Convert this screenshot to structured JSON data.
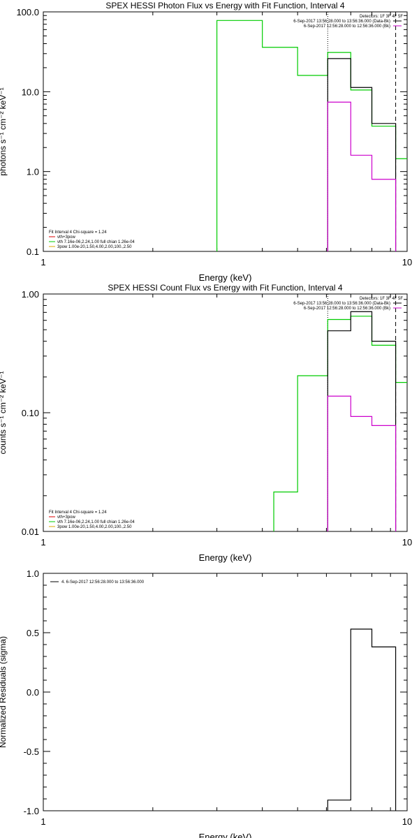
{
  "chart_data": [
    {
      "type": "line",
      "title": "SPEX HESSI Photon Flux vs Energy with Fit Function, Interval 4",
      "xlabel": "Energy (keV)",
      "ylabel": "photons s⁻¹ cm⁻² keV⁻¹",
      "x_scale": "log",
      "y_scale": "log",
      "xlim": [
        1,
        10
      ],
      "ylim": [
        0.1,
        100
      ],
      "x_ticks": [
        "1",
        "10"
      ],
      "y_ticks": [
        "0.1",
        "1.0",
        "10.0",
        "100.0"
      ],
      "legend_top": {
        "header": "Detectors: 1F 3F 4F 5F",
        "entries": [
          {
            "label": "6-Sep-2017 13:56:28.000 to 13:56:36.000 (Data-Bk)",
            "color": "#000000"
          },
          {
            "label": "6-Sep-2017 12:56:28.000 to 12:56:36.000 (Bk)",
            "color": "#cc00cc"
          }
        ]
      },
      "legend_bottom": {
        "header": "Fit Interval 4   Chi-square = 1.24",
        "entries": [
          {
            "label": "vth+3pow",
            "color": "#dd0000"
          },
          {
            "label": "vth 7.16e-06,2.24,1.00  full chian 1.26e-04",
            "color": "#00cc00"
          },
          {
            "label": "3pow 1.00e-20,1.50,4.00,2.00,100.,2.50",
            "color": "#ddaa00"
          }
        ]
      },
      "vlines": [
        {
          "x": 6.05,
          "style": "dotted"
        },
        {
          "x": 9.3,
          "style": "dashed"
        }
      ],
      "series": [
        {
          "role": "model",
          "color": "#00cc00",
          "edges": [
            3.0,
            4.0,
            5.0,
            6.05,
            7.0,
            8.0,
            9.3,
            10.5
          ],
          "values": [
            78,
            36,
            16,
            31,
            10.5,
            3.7,
            1.45
          ]
        },
        {
          "role": "data",
          "color": "#000000",
          "edges": [
            6.05,
            7.0,
            8.0,
            9.3
          ],
          "values": [
            26,
            11.3,
            4.0
          ]
        },
        {
          "role": "background",
          "color": "#cc00cc",
          "edges": [
            6.05,
            7.0,
            8.0,
            9.3
          ],
          "values": [
            7.4,
            1.6,
            0.8
          ]
        }
      ]
    },
    {
      "type": "line",
      "title": "SPEX HESSI Count Flux vs Energy with Fit Function, Interval 4",
      "xlabel": "Energy (keV)",
      "ylabel": "counts s⁻¹ cm⁻² keV⁻¹",
      "x_scale": "log",
      "y_scale": "log",
      "xlim": [
        1,
        10
      ],
      "ylim": [
        0.01,
        1.0
      ],
      "x_ticks": [
        "1",
        "10"
      ],
      "y_ticks": [
        "0.01",
        "0.10",
        "1.00"
      ],
      "legend_top": {
        "header": "Detectors: 1F 3F 4F 5F",
        "entries": [
          {
            "label": "6-Sep-2017 13:56:28.000 to 13:56:36.000 (Data-Bk)",
            "color": "#000000"
          },
          {
            "label": "6-Sep-2017 12:56:28.000 to 12:56:36.000 (Bk)",
            "color": "#cc00cc"
          }
        ]
      },
      "legend_bottom": {
        "header": "Fit Interval 4   Chi-square = 1.24",
        "entries": [
          {
            "label": "vth+3pow",
            "color": "#dd0000"
          },
          {
            "label": "vth 7.16e-06,2.24,1.00  full chian 1.26e-04",
            "color": "#00cc00"
          },
          {
            "label": "3pow 1.00e-20,1.50,4.00,2.00,100.,2.50",
            "color": "#ddaa00"
          }
        ]
      },
      "vlines": [
        {
          "x": 6.05,
          "style": "dotted"
        },
        {
          "x": 9.3,
          "style": "dashed"
        }
      ],
      "series": [
        {
          "role": "model",
          "color": "#00cc00",
          "edges": [
            4.3,
            5.0,
            6.05,
            7.0,
            8.0,
            9.3,
            10.5
          ],
          "values": [
            0.0215,
            0.205,
            0.61,
            0.65,
            0.37,
            0.18
          ]
        },
        {
          "role": "data",
          "color": "#000000",
          "edges": [
            6.05,
            7.0,
            8.0,
            9.3
          ],
          "values": [
            0.49,
            0.71,
            0.4
          ]
        },
        {
          "role": "background",
          "color": "#cc00cc",
          "edges": [
            6.05,
            7.0,
            8.0,
            9.3
          ],
          "values": [
            0.138,
            0.093,
            0.078
          ]
        }
      ]
    },
    {
      "type": "line",
      "title": "",
      "xlabel": "Energy (keV)",
      "ylabel": "Normalized Residuals (sigma)",
      "x_scale": "log",
      "y_scale": "linear",
      "xlim": [
        1,
        10
      ],
      "ylim": [
        -1.0,
        1.0
      ],
      "x_ticks": [
        "1",
        "10"
      ],
      "y_ticks": [
        "-1.0",
        "-0.5",
        "0.0",
        "0.5",
        "1.0"
      ],
      "legend_top": {
        "header": "",
        "entries": [
          {
            "label": "4.  6-Sep-2017 12:56:28.000 to 13:56:36.000",
            "color": "#000000"
          }
        ]
      },
      "vlines": [],
      "series": [
        {
          "role": "residuals",
          "color": "#000000",
          "edges": [
            6.05,
            7.0,
            8.0,
            9.3
          ],
          "values": [
            -0.91,
            0.53,
            0.38
          ]
        }
      ]
    }
  ]
}
